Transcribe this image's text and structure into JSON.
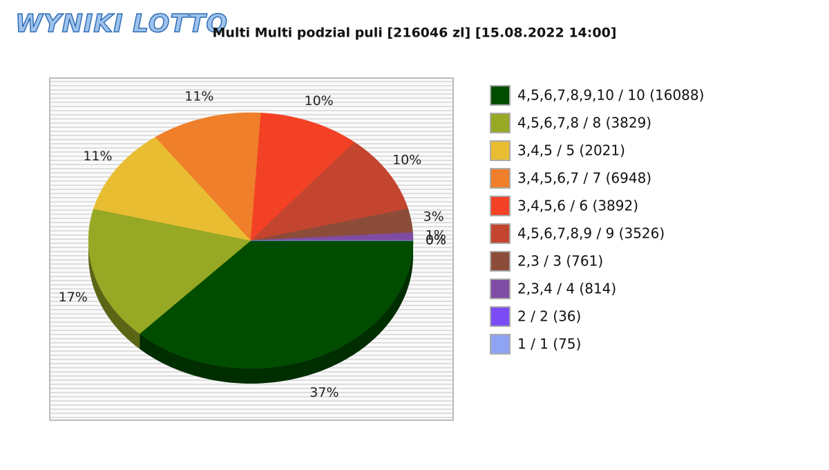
{
  "logo": "WYNIKI LOTTO",
  "chart_data": {
    "type": "pie",
    "title": "Multi Multi podzial puli [216046 zl] [15.08.2022 14:00]",
    "categories": [
      "4,5,6,7,8,9,10 / 10 (16088)",
      "4,5,6,7,8 / 8 (3829)",
      "3,4,5 / 5 (2021)",
      "3,4,5,6,7 / 7 (6948)",
      "3,4,5,6 / 6 (3892)",
      "4,5,6,7,8,9 / 9 (3526)",
      "2,3 / 3 (761)",
      "2,3,4 / 4 (814)",
      "2 / 2 (36)",
      "1 / 1 (75)"
    ],
    "values": [
      37,
      17,
      11,
      11,
      10,
      10,
      3,
      1,
      0,
      0
    ],
    "value_labels": [
      "37%",
      "17%",
      "11%",
      "11%",
      "10%",
      "10%",
      "3%",
      "1%",
      "0%",
      "0%"
    ],
    "colors": [
      "#004d00",
      "#97a825",
      "#e8bd32",
      "#ef7f2a",
      "#f34125",
      "#c4452f",
      "#8b4c39",
      "#7f4ca3",
      "#7a4cf5",
      "#8fa4f5"
    ],
    "legend": "right"
  }
}
